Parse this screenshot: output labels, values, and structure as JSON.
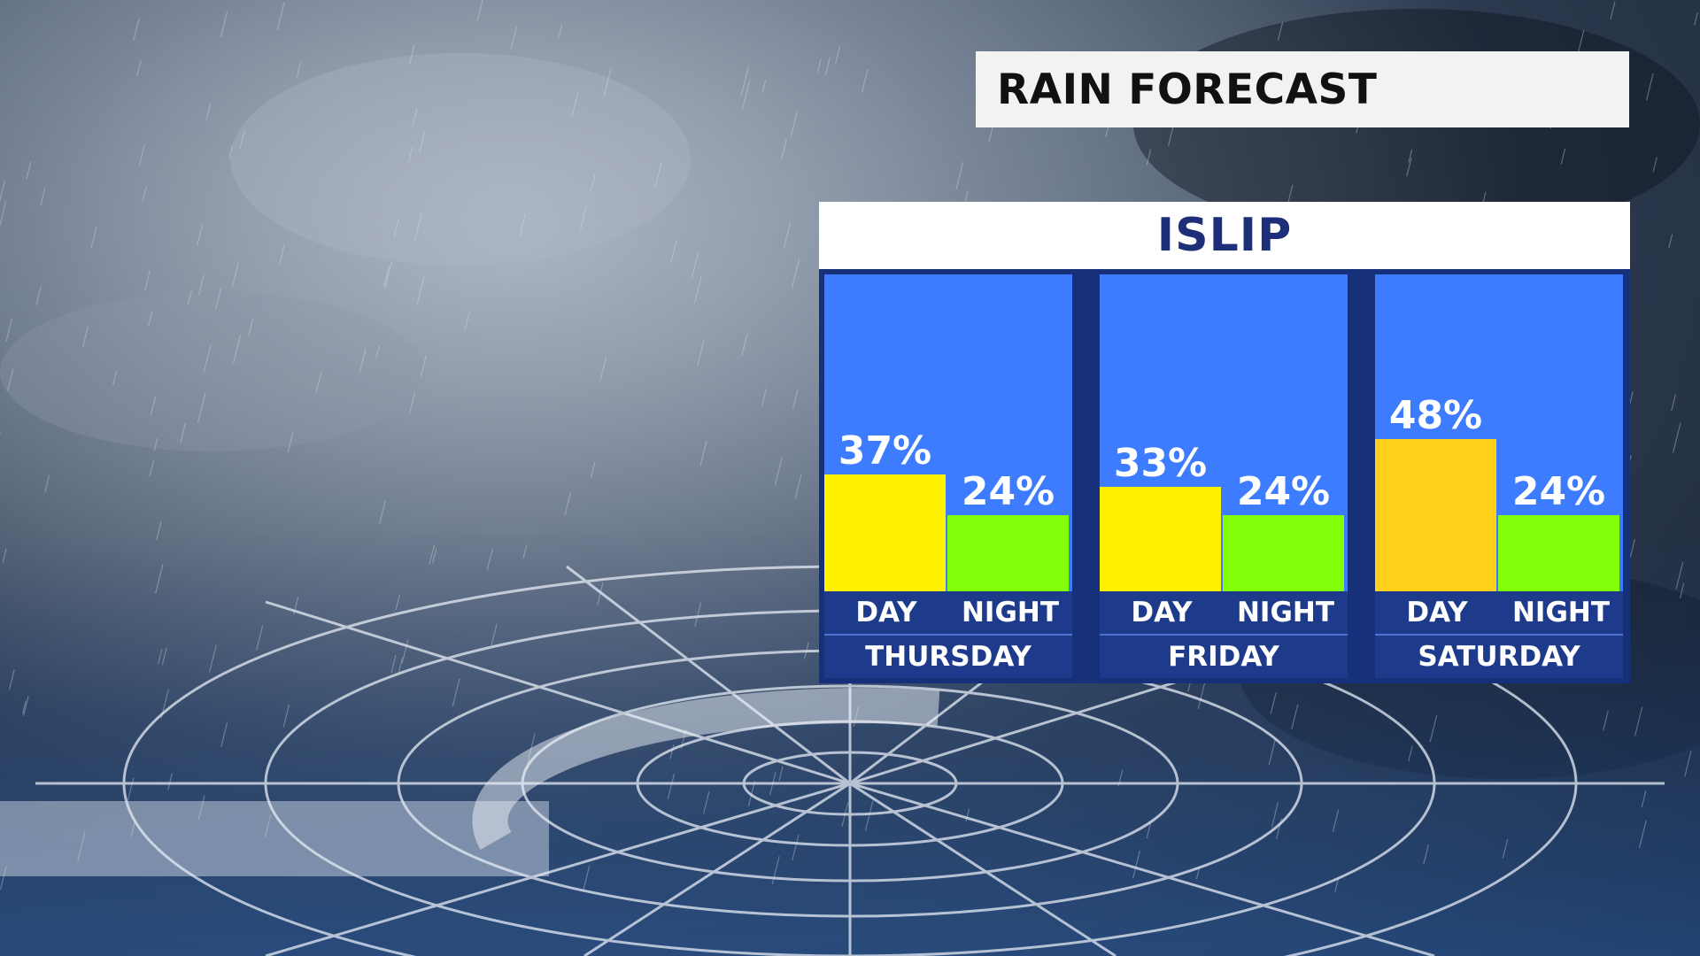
{
  "title": "RAIN FORECAST",
  "location": "ISLIP",
  "colors": {
    "day_bar": "#fff200",
    "day_bar_peak": "#ffd11a",
    "night_bar": "#84ff0a",
    "plot_bg": "#3d7cff",
    "frame": "#17307a"
  },
  "chart_data": {
    "type": "bar",
    "unit": "%",
    "ylim": [
      0,
      100
    ],
    "days": [
      {
        "name": "THURSDAY",
        "periods": [
          {
            "label": "DAY",
            "value": 37,
            "text": "37%"
          },
          {
            "label": "NIGHT",
            "value": 24,
            "text": "24%"
          }
        ]
      },
      {
        "name": "FRIDAY",
        "periods": [
          {
            "label": "DAY",
            "value": 33,
            "text": "33%"
          },
          {
            "label": "NIGHT",
            "value": 24,
            "text": "24%"
          }
        ]
      },
      {
        "name": "SATURDAY",
        "periods": [
          {
            "label": "DAY",
            "value": 48,
            "text": "48%"
          },
          {
            "label": "NIGHT",
            "value": 24,
            "text": "24%"
          }
        ]
      }
    ]
  }
}
